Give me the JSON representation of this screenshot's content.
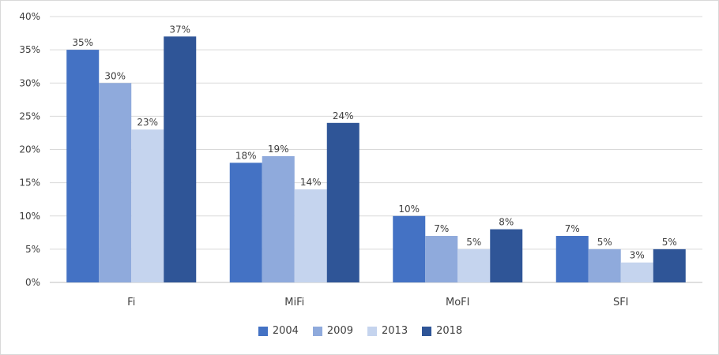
{
  "chart_data": {
    "type": "bar",
    "categories": [
      "Fi",
      "MiFi",
      "MoFI",
      "SFI"
    ],
    "series": [
      {
        "name": "2004",
        "values": [
          35,
          18,
          10,
          7
        ],
        "labels": [
          "35%",
          "18%",
          "10%",
          "7%"
        ],
        "color": "#4472c4"
      },
      {
        "name": "2009",
        "values": [
          30,
          19,
          7,
          5
        ],
        "labels": [
          "30%",
          "19%",
          "7%",
          "5%"
        ],
        "color": "#8faadc"
      },
      {
        "name": "2013",
        "values": [
          23,
          14,
          5,
          3
        ],
        "labels": [
          "23%",
          "14%",
          "5%",
          "3%"
        ],
        "color": "#c5d4ee"
      },
      {
        "name": "2018",
        "values": [
          37,
          24,
          8,
          5
        ],
        "labels": [
          "37%",
          "24%",
          "8%",
          "5%"
        ],
        "color": "#2f5597"
      }
    ],
    "yticks": [
      "0%",
      "5%",
      "10%",
      "15%",
      "20%",
      "25%",
      "30%",
      "35%",
      "40%"
    ],
    "ylim": [
      0,
      40
    ],
    "grid": true,
    "legend_position": "bottom",
    "title": "",
    "xlabel": "",
    "ylabel": ""
  }
}
